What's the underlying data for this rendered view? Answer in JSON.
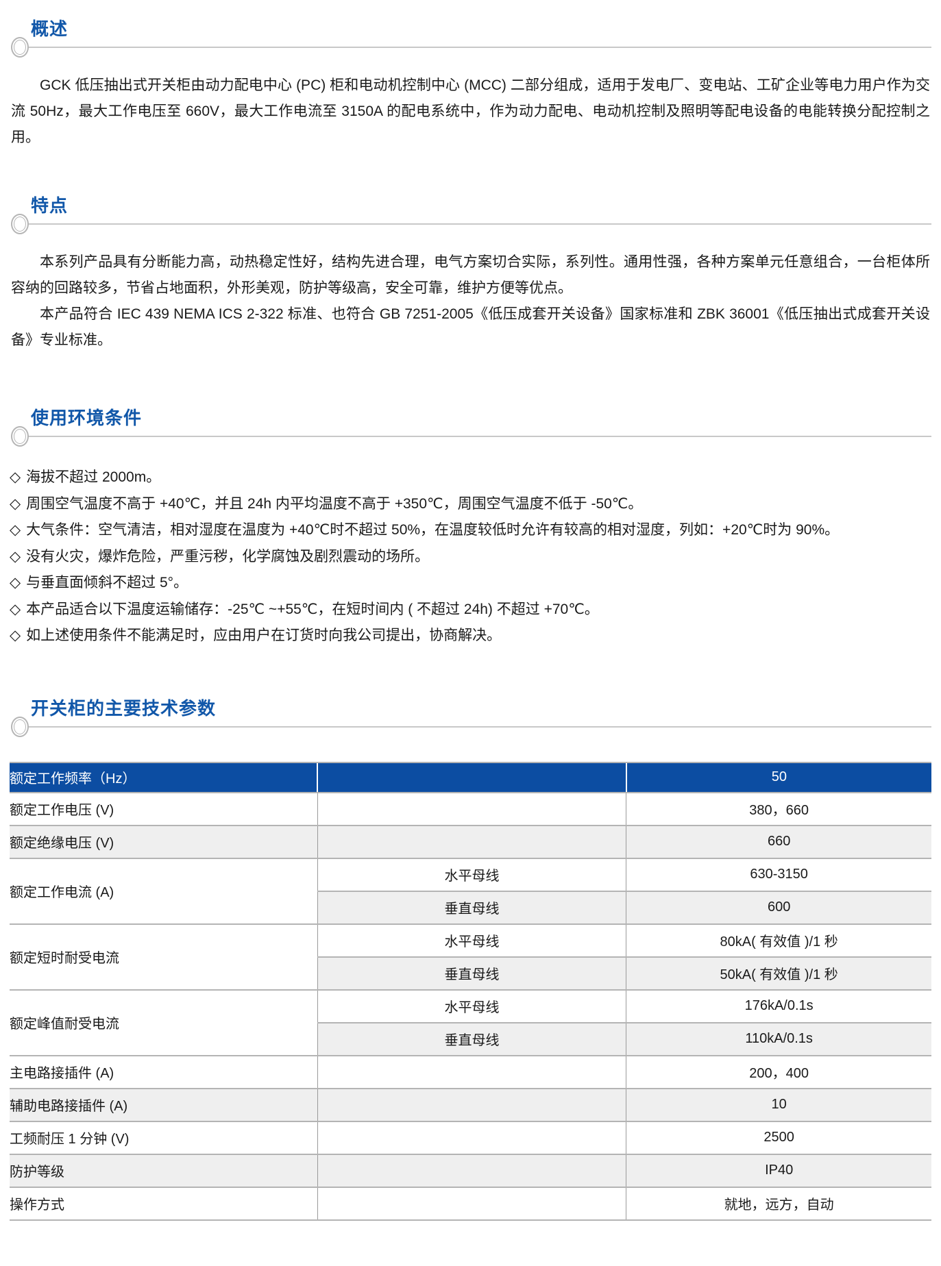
{
  "theme": {
    "heading_blue": "#1157A9",
    "table_header_blue": "#0C4DA2",
    "shade_gray": "#efefef",
    "rule_gray": "#c8c8c8",
    "text_color": "#1a1a1a"
  },
  "sections": {
    "overview": {
      "title": "概述",
      "paragraphs": [
        "GCK 低压抽出式开关柜由动力配电中心 (PC) 柜和电动机控制中心 (MCC) 二部分组成，适用于发电厂、变电站、工矿企业等电力用户作为交流 50Hz，最大工作电压至 660V，最大工作电流至 3150A 的配电系统中，作为动力配电、电动机控制及照明等配电设备的电能转换分配控制之用。"
      ]
    },
    "features": {
      "title": "特点",
      "paragraphs": [
        "本系列产品具有分断能力高，动热稳定性好，结构先进合理，电气方案切合实际，系列性。通用性强，各种方案单元任意组合，一台柜体所容纳的回路较多，节省占地面积，外形美观，防护等级高，安全可靠，维护方便等优点。",
        "本产品符合 IEC 439 NEMA ICS 2-322 标准、也符合 GB 7251-2005《低压成套开关设备》国家标准和 ZBK 36001《低压抽出式成套开关设备》专业标准。"
      ]
    },
    "environment": {
      "title": "使用环境条件",
      "bullet_glyph": "◇",
      "bullets": [
        "海拔不超过 2000m。",
        "周围空气温度不高于 +40℃，并且 24h 内平均温度不高于 +350℃，周围空气温度不低于 -50℃。",
        "大气条件：空气清洁，相对湿度在温度为 +40℃时不超过 50%，在温度较低时允许有较高的相对湿度，列如：+20℃时为 90%。",
        "没有火灾，爆炸危险，严重污秽，化学腐蚀及剧烈震动的场所。",
        "与垂直面倾斜不超过 5°。",
        "本产品适合以下温度运输储存：-25℃ ~+55℃，在短时间内 ( 不超过 24h) 不超过 +70℃。",
        "如上述使用条件不能满足时，应由用户在订货时向我公司提出，协商解决。"
      ]
    },
    "parameters": {
      "title": "开关柜的主要技术参数"
    }
  },
  "spec_table": {
    "header_row": {
      "param": "额定工作频率（Hz）",
      "sub": "",
      "value": "50"
    },
    "rows": [
      {
        "param": "额定工作电压 (V)",
        "sub": "",
        "value": "380，660",
        "shade": false
      },
      {
        "param": "额定绝缘电压 (V)",
        "sub": "",
        "value": "660",
        "shade": true
      },
      {
        "param": "额定工作电流 (A)",
        "group": [
          {
            "sub": "水平母线",
            "value": "630-3150",
            "shade": false
          },
          {
            "sub": "垂直母线",
            "value": "600",
            "shade": true
          }
        ]
      },
      {
        "param": "额定短时耐受电流",
        "group": [
          {
            "sub": "水平母线",
            "value": "80kA( 有效值 )/1 秒",
            "shade": false
          },
          {
            "sub": "垂直母线",
            "value": "50kA( 有效值 )/1 秒",
            "shade": true
          }
        ]
      },
      {
        "param": "额定峰值耐受电流",
        "group": [
          {
            "sub": "水平母线",
            "value": "176kA/0.1s",
            "shade": false
          },
          {
            "sub": "垂直母线",
            "value": "110kA/0.1s",
            "shade": true
          }
        ]
      },
      {
        "param": "主电路接插件 (A)",
        "sub": "",
        "value": "200，400",
        "shade": false
      },
      {
        "param": "辅助电路接插件 (A)",
        "sub": "",
        "value": "10",
        "shade": true
      },
      {
        "param": "工频耐压 1 分钟 (V)",
        "sub": "",
        "value": "2500",
        "shade": false
      },
      {
        "param": "防护等级",
        "sub": "",
        "value": "IP40",
        "shade": true
      },
      {
        "param": "操作方式",
        "sub": "",
        "value": "就地，远方，自动",
        "shade": false
      }
    ]
  }
}
